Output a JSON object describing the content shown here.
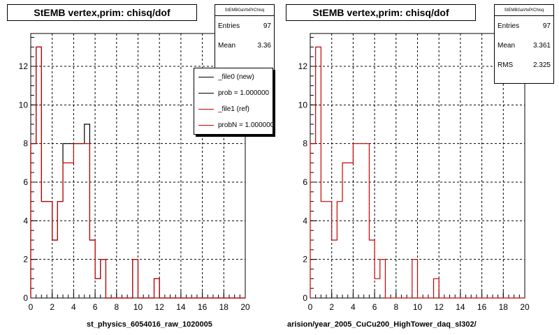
{
  "chart_data": [
    {
      "type": "histogram",
      "title": "StEMB  vertex,prim: chisq/dof",
      "xlabel": "st_physics_6054016_raw_1020005",
      "xlim": [
        0,
        20
      ],
      "ylim": [
        0,
        13.7
      ],
      "xticks": [
        "0",
        "2",
        "4",
        "6",
        "8",
        "10",
        "12",
        "14",
        "16",
        "18",
        "20"
      ],
      "yticks": [
        "0",
        "2",
        "4",
        "6",
        "8",
        "10",
        "12"
      ],
      "grid": true,
      "bin_width": 0.5,
      "series": [
        {
          "name": "_file0 (new)",
          "color": "#000000",
          "values": [
            8,
            13,
            5,
            5,
            3,
            5,
            8,
            8,
            8,
            8,
            9,
            3,
            1,
            2,
            0,
            0,
            0,
            0,
            0,
            2,
            0,
            0,
            0,
            1,
            0,
            0,
            0,
            0,
            0,
            0,
            0,
            0,
            0,
            0,
            0,
            0,
            0,
            0,
            0,
            0
          ]
        },
        {
          "name": "_file1 (ref)",
          "color": "#cc0000",
          "values": [
            8,
            13,
            5,
            5,
            3,
            5,
            7,
            7,
            8,
            8,
            8,
            3,
            1,
            2,
            0,
            0,
            0,
            0,
            0,
            2,
            0,
            0,
            0,
            1,
            0,
            0,
            0,
            0,
            0,
            0,
            0,
            0,
            0,
            0,
            0,
            0,
            0,
            0,
            0,
            0
          ]
        }
      ],
      "stats": {
        "header": "StEMBGaVtxPrChisq",
        "entries_label": "Entries",
        "entries": "97",
        "mean_label": "Mean",
        "mean": "3.36"
      },
      "legend": {
        "placement": "top-right",
        "entries": [
          {
            "label": "_file0 (new)",
            "color": "#000000"
          },
          {
            "label": "prob = 1.000000",
            "color": "#000000"
          },
          {
            "label": "_file1 (ref)",
            "color": "#cc0000"
          },
          {
            "label": "probN = 1.000000",
            "color": "#cc0000"
          }
        ]
      }
    },
    {
      "type": "histogram",
      "title": "StEMB  vertex,prim: chisq/dof",
      "xlabel": "arision/year_2005_CuCu200_HighTower_daq_sl302/",
      "xlim": [
        0,
        20
      ],
      "ylim": [
        0,
        13.7
      ],
      "xticks": [
        "0",
        "2",
        "4",
        "6",
        "8",
        "10",
        "12",
        "14",
        "16",
        "18",
        "20"
      ],
      "yticks": [
        "0",
        "2",
        "4",
        "6",
        "8",
        "10",
        "12"
      ],
      "grid": true,
      "bin_width": 0.5,
      "series": [
        {
          "name": "",
          "color": "#cc0000",
          "values": [
            8,
            13,
            5,
            5,
            3,
            5,
            7,
            7,
            8,
            8,
            8,
            3,
            1,
            2,
            0,
            0,
            0,
            0,
            0,
            2,
            0,
            0,
            0,
            1,
            0,
            0,
            0,
            0,
            0,
            0,
            0,
            0,
            0,
            0,
            0,
            0,
            0,
            0,
            0,
            0
          ]
        }
      ],
      "stats": {
        "header": "StEMBGaVtxPrChisq",
        "entries_label": "Entries",
        "entries": "97",
        "mean_label": "Mean",
        "mean": "3.361",
        "rms_label": "RMS",
        "rms": "2.325"
      }
    }
  ]
}
